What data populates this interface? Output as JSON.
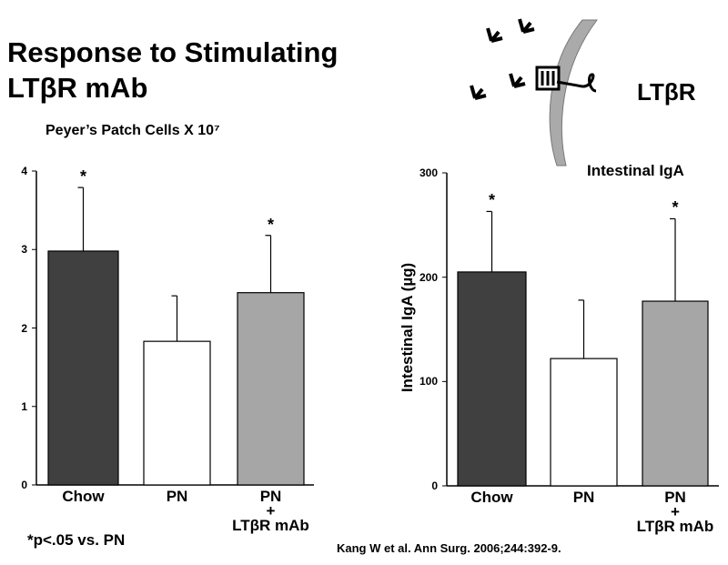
{
  "title": "Response to Stimulating\nLTβR mAb",
  "diagram_label": "LTβR",
  "footnote": "*p<.05 vs. PN",
  "citation": "Kang W et al. Ann Surg. 2006;244:392-9.",
  "chart_data": [
    {
      "type": "bar",
      "title": "Peyer’s Patch Cells X 10⁷",
      "categories": [
        "Chow",
        "PN",
        "PN\n+\nLTβR mAb"
      ],
      "values": [
        2.98,
        1.83,
        2.45
      ],
      "errors": [
        0.81,
        0.58,
        0.73
      ],
      "colors": [
        "#404040",
        "#ffffff",
        "#a6a6a6"
      ],
      "annotations": [
        "*",
        null,
        "*"
      ],
      "ylim": [
        0,
        4
      ],
      "yticks": [
        0,
        1,
        2,
        3,
        4
      ]
    },
    {
      "type": "bar",
      "title": "Intestinal IgA",
      "y_label": "Intestinal IgA (µg)",
      "categories": [
        "Chow",
        "PN",
        "PN\n+\nLTβR mAb"
      ],
      "values": [
        205,
        122,
        177
      ],
      "errors": [
        58,
        56,
        79
      ],
      "colors": [
        "#404040",
        "#ffffff",
        "#a6a6a6"
      ],
      "annotations": [
        "*",
        null,
        "*"
      ],
      "ylim": [
        0,
        300
      ],
      "yticks": [
        0,
        100,
        200,
        300
      ]
    }
  ]
}
